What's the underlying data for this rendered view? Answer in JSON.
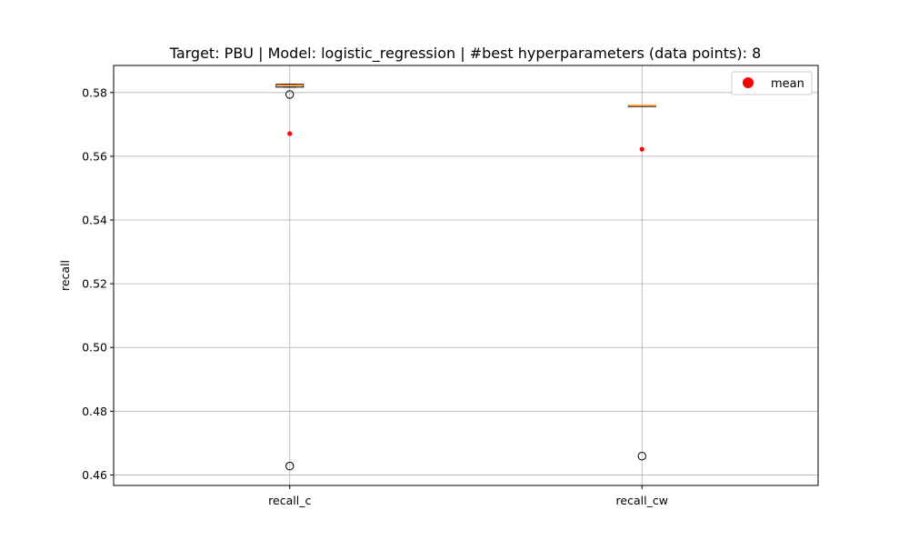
{
  "chart_data": {
    "type": "box",
    "title": "Target: PBU | Model: logistic_regression | #best hyperparameters (data points): 8",
    "xlabel": "",
    "ylabel": "recall",
    "categories": [
      "recall_c",
      "recall_cw"
    ],
    "ylim": [
      0.4567,
      0.5885
    ],
    "yticks": [
      0.46,
      0.48,
      0.5,
      0.52,
      0.54,
      0.56,
      0.58
    ],
    "ytick_labels": [
      "0.46",
      "0.48",
      "0.50",
      "0.52",
      "0.54",
      "0.56",
      "0.58"
    ],
    "grid": true,
    "legend": {
      "placement": "top-right",
      "entries": [
        "mean"
      ]
    },
    "boxes": [
      {
        "name": "recall_c",
        "q1": 0.5817,
        "median": 0.5823,
        "q3": 0.5826,
        "whisker_low": 0.5817,
        "whisker_high": 0.5826,
        "outliers": [
          0.5794,
          0.4628
        ],
        "mean": 0.5671
      },
      {
        "name": "recall_cw",
        "q1": 0.5759,
        "median": 0.5759,
        "q3": 0.5759,
        "whisker_low": 0.5759,
        "whisker_high": 0.5759,
        "outliers": [
          0.4659
        ],
        "mean": 0.5622
      }
    ],
    "colors": {
      "box": "#000000",
      "median": "#ff7f0e",
      "mean": "#ff0000",
      "outlier": "#000000",
      "grid": "#b0b0b0"
    }
  }
}
